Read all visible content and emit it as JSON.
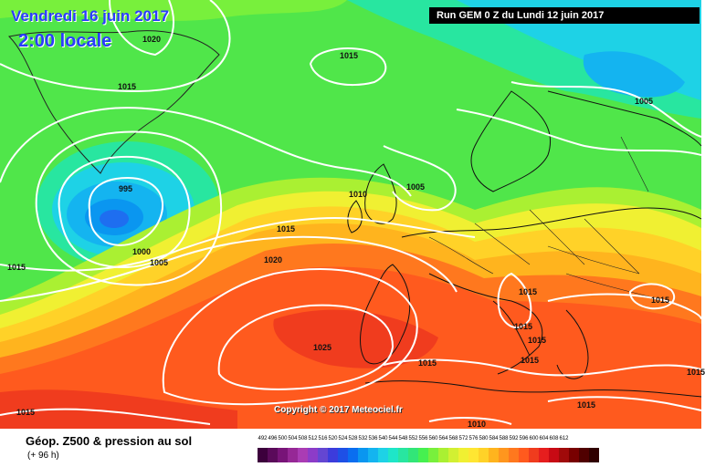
{
  "map": {
    "valid_date": "Vendredi 16 juin 2017",
    "local_time": "2:00 locale",
    "run_info": "Run GEM 0 Z du Lundi 12 juin 2017",
    "copyright": "Copyright © 2017 Meteociel.fr",
    "isobars": [
      {
        "value": "1020",
        "region": "Greenland north"
      },
      {
        "value": "1015",
        "region": "Greenland west"
      },
      {
        "value": "1015",
        "region": "Norwegian Sea"
      },
      {
        "value": "1005",
        "region": "Scandinavia east"
      },
      {
        "value": "995",
        "region": "low center south of Greenland"
      },
      {
        "value": "1000",
        "region": "low south"
      },
      {
        "value": "1005",
        "region": "low southeast"
      },
      {
        "value": "1015",
        "region": "Atlantic west edge"
      },
      {
        "value": "1010",
        "region": "North Sea"
      },
      {
        "value": "1005",
        "region": "Scandinavia south"
      },
      {
        "value": "1015",
        "region": "mid Atlantic"
      },
      {
        "value": "1020",
        "region": "Azores high north"
      },
      {
        "value": "1025",
        "region": "Azores high center"
      },
      {
        "value": "1015",
        "region": "Alps"
      },
      {
        "value": "1015",
        "region": "Balkans east"
      },
      {
        "value": "1015",
        "region": "Italy"
      },
      {
        "value": "1015",
        "region": "Adriatic"
      },
      {
        "value": "1015",
        "region": "Iberia south"
      },
      {
        "value": "1015",
        "region": "Aegean"
      },
      {
        "value": "1015",
        "region": "Ionian"
      },
      {
        "value": "1015",
        "region": "Mediterranean south"
      },
      {
        "value": "1015",
        "region": "Atlantic southwest"
      },
      {
        "value": "1010",
        "region": "North Africa"
      }
    ]
  },
  "legend": {
    "parameter": "Géop. Z500 & pression au sol",
    "lead_time": "(+ 96 h)",
    "scale": [
      {
        "label": "492",
        "color": "#3c003c"
      },
      {
        "label": "496",
        "color": "#5a0a5a"
      },
      {
        "label": "500",
        "color": "#781478"
      },
      {
        "label": "504",
        "color": "#962896"
      },
      {
        "label": "508",
        "color": "#aa3cb4"
      },
      {
        "label": "512",
        "color": "#8c3cc8"
      },
      {
        "label": "516",
        "color": "#6446d2"
      },
      {
        "label": "520",
        "color": "#3c3cdc"
      },
      {
        "label": "524",
        "color": "#1e50e6"
      },
      {
        "label": "528",
        "color": "#0a6ef0"
      },
      {
        "label": "532",
        "color": "#0a96f0"
      },
      {
        "label": "536",
        "color": "#14b4f0"
      },
      {
        "label": "540",
        "color": "#1ed2e6"
      },
      {
        "label": "544",
        "color": "#1ee6c8"
      },
      {
        "label": "548",
        "color": "#28e6a0"
      },
      {
        "label": "552",
        "color": "#32e678"
      },
      {
        "label": "556",
        "color": "#46f050"
      },
      {
        "label": "560",
        "color": "#78f03c"
      },
      {
        "label": "564",
        "color": "#aaf032"
      },
      {
        "label": "568",
        "color": "#d2f032"
      },
      {
        "label": "572",
        "color": "#f0f032"
      },
      {
        "label": "576",
        "color": "#ffe632"
      },
      {
        "label": "580",
        "color": "#ffd228"
      },
      {
        "label": "584",
        "color": "#ffb41e"
      },
      {
        "label": "588",
        "color": "#ff961e"
      },
      {
        "label": "592",
        "color": "#ff781e"
      },
      {
        "label": "596",
        "color": "#ff5a1e"
      },
      {
        "label": "600",
        "color": "#f03c1e"
      },
      {
        "label": "604",
        "color": "#e61e1e"
      },
      {
        "label": "608",
        "color": "#c80a14"
      },
      {
        "label": "612",
        "color": "#a00a0a"
      },
      {
        "label": "",
        "color": "#780000"
      },
      {
        "label": "",
        "color": "#500000"
      },
      {
        "label": "",
        "color": "#300000"
      }
    ]
  }
}
